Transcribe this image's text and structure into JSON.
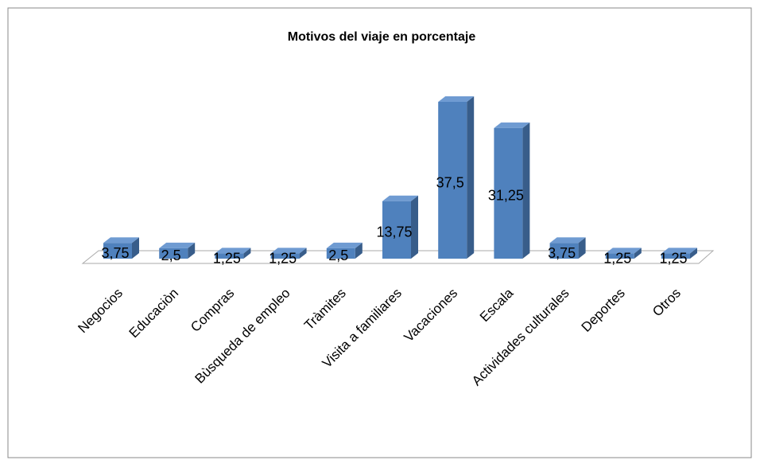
{
  "chart_data": {
    "type": "bar3d",
    "title": "Motivos del viaje en porcentaje",
    "categories": [
      "Negocios",
      "Educaciòn",
      "Compras",
      "Bùsqueda de empleo",
      "Tràmites",
      "Visita a familiares",
      "Vacaciones",
      "Escala",
      "Actividades  culturales",
      "Deportes",
      "Otros"
    ],
    "values": [
      3.75,
      2.5,
      1.25,
      1.25,
      2.5,
      13.75,
      37.5,
      31.25,
      3.75,
      1.25,
      1.25
    ],
    "value_labels": [
      "3,75",
      "2,5",
      "1,25",
      "1,25",
      "2,5",
      "13,75",
      "37,5",
      "31,25",
      "3,75",
      "1,25",
      "1,25"
    ],
    "color": "#4f81bd"
  }
}
